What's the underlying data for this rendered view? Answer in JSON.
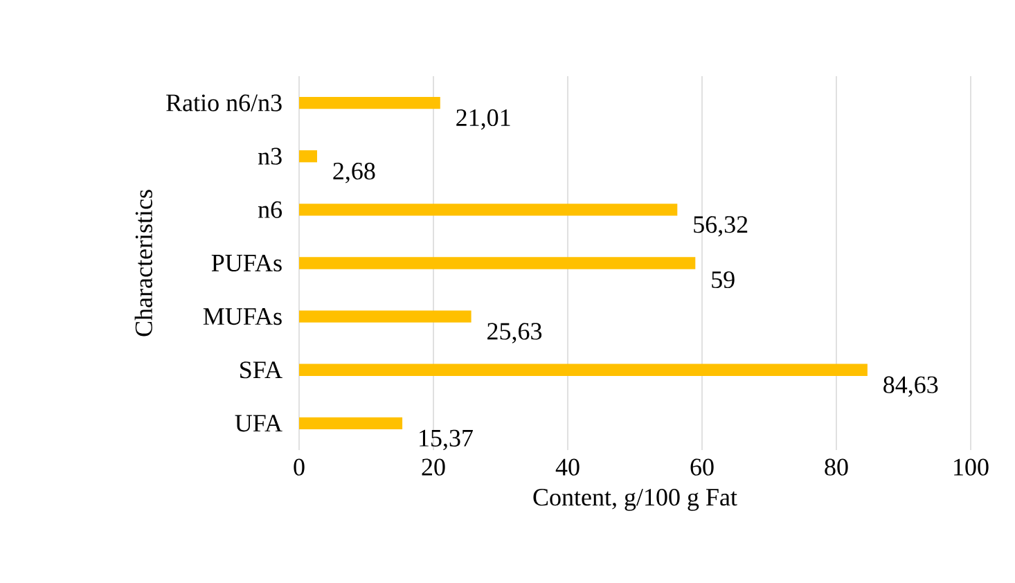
{
  "chart_data": {
    "type": "bar",
    "orientation": "horizontal",
    "xlabel": "Content, g/100 g Fat",
    "ylabel": "Characteristics",
    "categories": [
      "Ratio n6/n3",
      "n3",
      "n6",
      "PUFAs",
      "MUFAs",
      "SFA",
      "UFA"
    ],
    "values": [
      21.01,
      2.68,
      56.32,
      59,
      25.63,
      84.63,
      15.37
    ],
    "value_labels": [
      "21,01",
      "2,68",
      "56,32",
      "59",
      "25,63",
      "84,63",
      "15,37"
    ],
    "color": "#ffc000",
    "xlim": [
      0,
      100
    ],
    "xticks": [
      0,
      20,
      40,
      60,
      80,
      100
    ],
    "grid": "x"
  }
}
